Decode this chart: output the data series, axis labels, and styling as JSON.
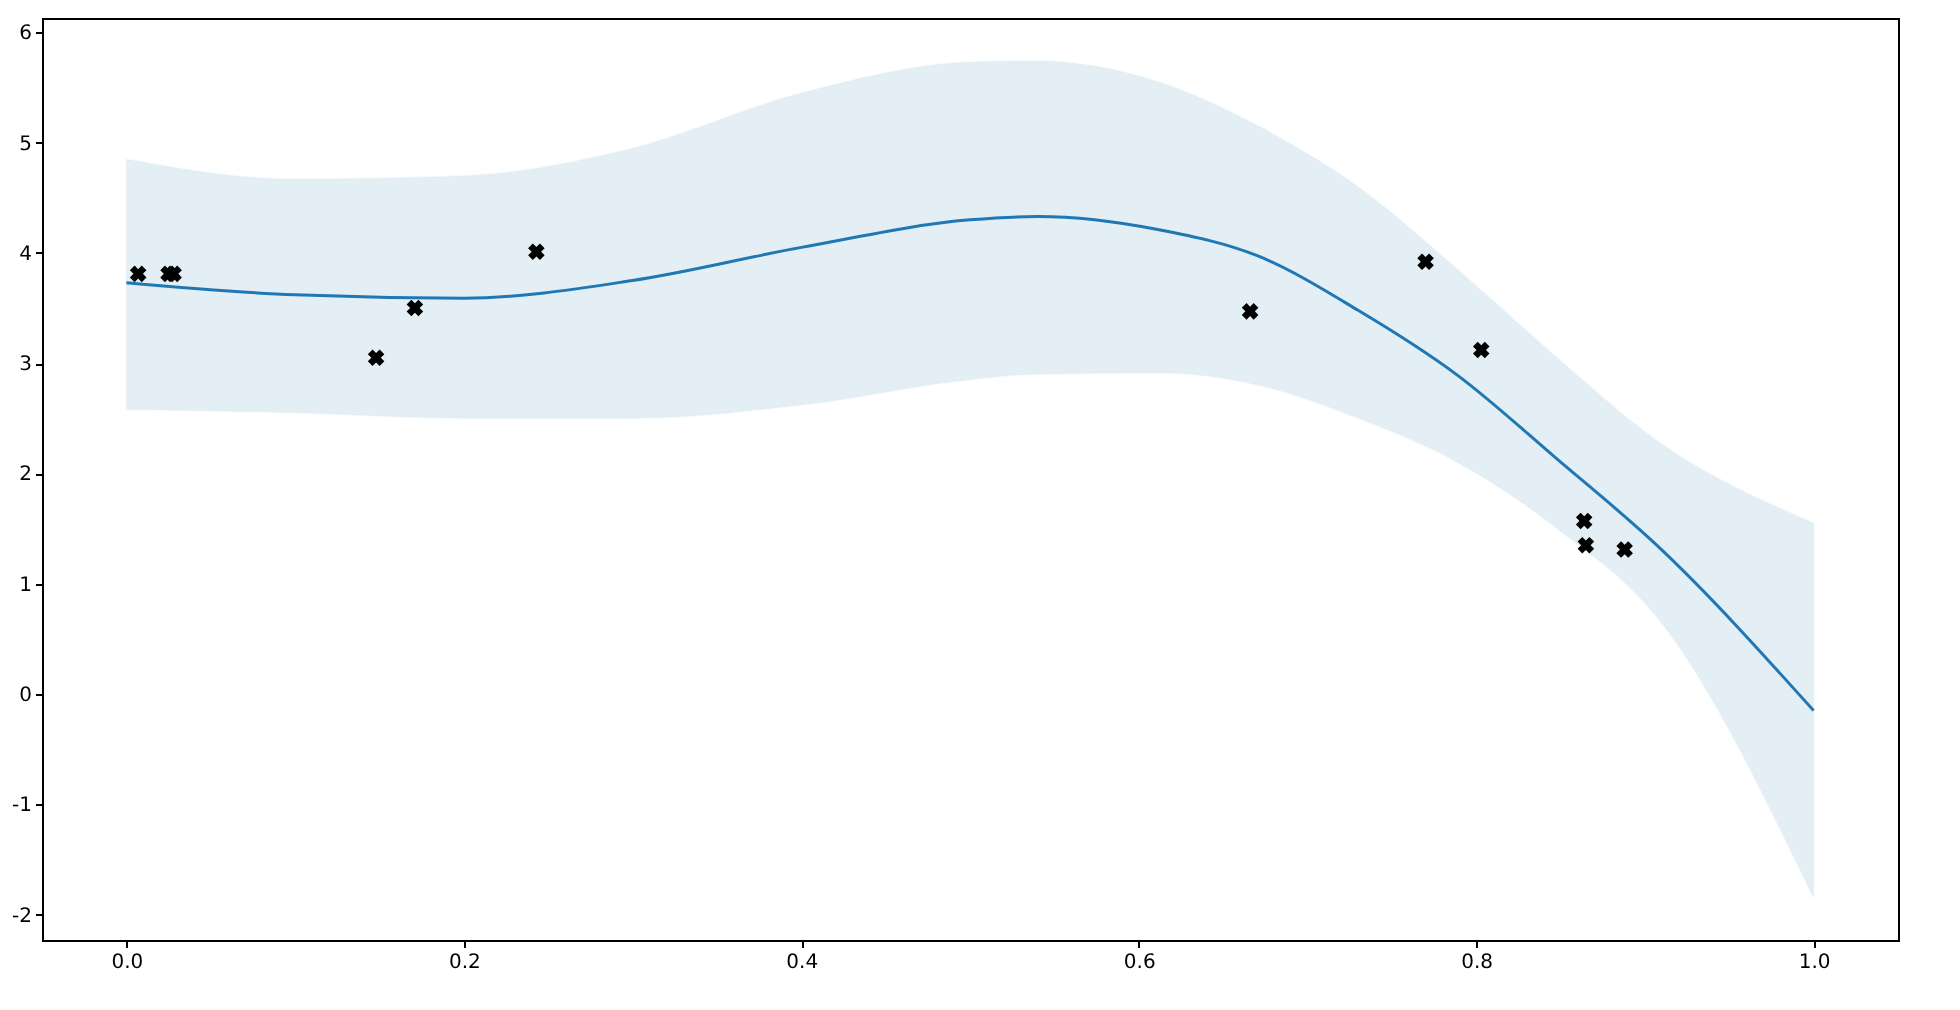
{
  "chart_data": {
    "type": "line",
    "xlim": [
      -0.05,
      1.05
    ],
    "ylim": [
      -2.23,
      6.13
    ],
    "xticks": [
      {
        "value": 0,
        "label": "0.0"
      },
      {
        "value": 0.2,
        "label": "0.2"
      },
      {
        "value": 0.4,
        "label": "0.4"
      },
      {
        "value": 0.6,
        "label": "0.6"
      },
      {
        "value": 0.8,
        "label": "0.8"
      },
      {
        "value": 1,
        "label": "1.0"
      }
    ],
    "yticks": [
      -2,
      -1,
      0,
      1,
      2,
      3,
      4,
      5,
      6
    ],
    "grid": false,
    "series": [
      {
        "color": "#1f77b4",
        "marker": "none",
        "x": [
          0,
          0.1,
          0.2,
          0.3,
          0.4,
          0.5,
          0.54,
          0.612,
          0.671,
          0.73,
          0.789,
          0.848,
          0.907,
          1
        ],
        "values": [
          3.73,
          3.62,
          3.59,
          3.75,
          4.05,
          4.3,
          4.33,
          4.21,
          3.97,
          3.48,
          2.89,
          2.13,
          1.35,
          -0.15
        ],
        "lower": [
          2.58,
          2.55,
          2.5,
          2.5,
          2.62,
          2.85,
          2.9,
          2.91,
          2.8,
          2.5,
          2.1,
          1.5,
          0.7,
          -1.85
        ],
        "upper": [
          4.85,
          4.67,
          4.7,
          4.95,
          5.45,
          5.73,
          5.74,
          5.55,
          5.15,
          4.6,
          3.85,
          3.05,
          2.3,
          1.55
        ]
      },
      {
        "type": "scatter",
        "color": "#000000",
        "marker": "cross",
        "x": [
          0.007,
          0.025,
          0.028,
          0.148,
          0.171,
          0.243,
          0.666,
          0.77,
          0.803,
          0.864,
          0.865,
          0.888
        ],
        "values": [
          3.81,
          3.81,
          3.81,
          3.05,
          3.5,
          4.01,
          3.47,
          3.92,
          3.12,
          1.57,
          1.35,
          1.31
        ]
      }
    ]
  }
}
